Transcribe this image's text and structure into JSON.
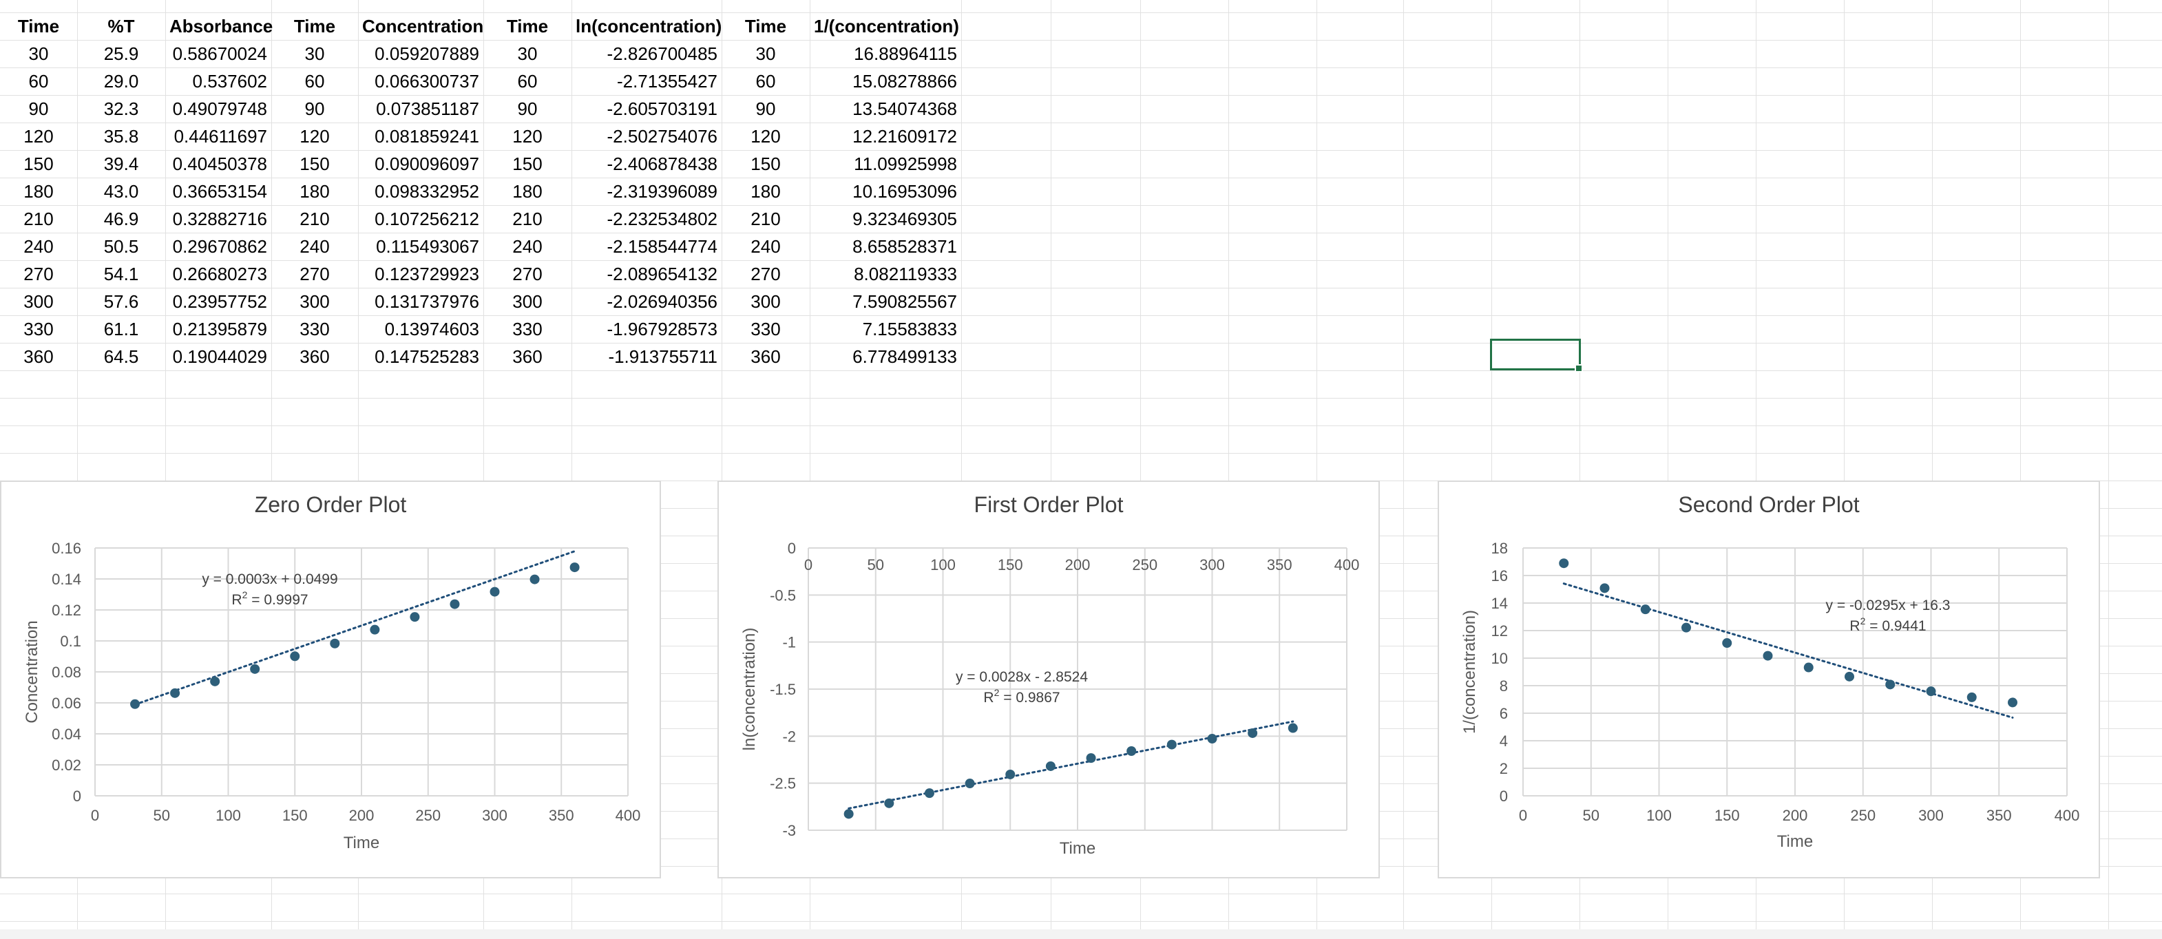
{
  "spreadsheet": {
    "headers": [
      "Time",
      "%T",
      "Absorbance",
      "Time",
      "Concentration",
      "Time",
      "ln(concentration)",
      "Time",
      "1/(concentration)"
    ],
    "rows": [
      [
        "30",
        "25.9",
        "0.58670024",
        "30",
        "0.059207889",
        "30",
        "-2.826700485",
        "30",
        "16.88964115"
      ],
      [
        "60",
        "29.0",
        "0.537602",
        "60",
        "0.066300737",
        "60",
        "-2.71355427",
        "60",
        "15.08278866"
      ],
      [
        "90",
        "32.3",
        "0.49079748",
        "90",
        "0.073851187",
        "90",
        "-2.605703191",
        "90",
        "13.54074368"
      ],
      [
        "120",
        "35.8",
        "0.44611697",
        "120",
        "0.081859241",
        "120",
        "-2.502754076",
        "120",
        "12.21609172"
      ],
      [
        "150",
        "39.4",
        "0.40450378",
        "150",
        "0.090096097",
        "150",
        "-2.406878438",
        "150",
        "11.09925998"
      ],
      [
        "180",
        "43.0",
        "0.36653154",
        "180",
        "0.098332952",
        "180",
        "-2.319396089",
        "180",
        "10.16953096"
      ],
      [
        "210",
        "46.9",
        "0.32882716",
        "210",
        "0.107256212",
        "210",
        "-2.232534802",
        "210",
        "9.323469305"
      ],
      [
        "240",
        "50.5",
        "0.29670862",
        "240",
        "0.115493067",
        "240",
        "-2.158544774",
        "240",
        "8.658528371"
      ],
      [
        "270",
        "54.1",
        "0.26680273",
        "270",
        "0.123729923",
        "270",
        "-2.089654132",
        "270",
        "8.082119333"
      ],
      [
        "300",
        "57.6",
        "0.23957752",
        "300",
        "0.131737976",
        "300",
        "-2.026940356",
        "300",
        "7.590825567"
      ],
      [
        "330",
        "61.1",
        "0.21395879",
        "330",
        "0.13974603",
        "330",
        "-1.967928573",
        "330",
        "7.15583833"
      ],
      [
        "360",
        "64.5",
        "0.19044029",
        "360",
        "0.147525283",
        "360",
        "-1.913755711",
        "360",
        "6.778499133"
      ]
    ]
  },
  "colors": {
    "marker": "#2e5f7a",
    "gridline": "#d9d9d9",
    "sheet_grid": "#e1e1e1",
    "selection": "#217346",
    "axis_text": "#595959",
    "title_text": "#404040"
  },
  "chart_data": [
    {
      "type": "scatter",
      "title": "Zero Order Plot",
      "xlabel": "Time",
      "ylabel": "Concentration",
      "xlim": [
        0,
        400
      ],
      "ylim": [
        0,
        0.16
      ],
      "x_ticks": [
        "0",
        "50",
        "100",
        "150",
        "200",
        "250",
        "300",
        "350",
        "400"
      ],
      "y_ticks": [
        "0",
        "0.02",
        "0.04",
        "0.06",
        "0.08",
        "0.1",
        "0.12",
        "0.14",
        "0.16"
      ],
      "x_tick_values": [
        0,
        50,
        100,
        150,
        200,
        250,
        300,
        350,
        400
      ],
      "y_tick_values": [
        0,
        0.02,
        0.04,
        0.06,
        0.08,
        0.1,
        0.12,
        0.14,
        0.16
      ],
      "x_axis_position": "bottom",
      "grid": true,
      "series": [
        {
          "x": [
            30,
            60,
            90,
            120,
            150,
            180,
            210,
            240,
            270,
            300,
            330,
            360
          ],
          "y": [
            0.059207889,
            0.066300737,
            0.073851187,
            0.081859241,
            0.090096097,
            0.098332952,
            0.107256212,
            0.115493067,
            0.123729923,
            0.131737976,
            0.13974603,
            0.147525283
          ]
        }
      ],
      "trendline": {
        "type": "linear",
        "slope": 0.0003,
        "intercept": 0.0499,
        "x_from": 30,
        "x_to": 360
      },
      "equation": "y = 0.0003x + 0.0499",
      "r_squared_label": "R",
      "r_squared_exp": "2",
      "r_squared_value": " = 0.9997",
      "equation_position": "top-left"
    },
    {
      "type": "scatter",
      "title": "First Order Plot",
      "xlabel": "Time",
      "ylabel": "ln(concentration)",
      "xlim": [
        0,
        400
      ],
      "ylim": [
        -3,
        0
      ],
      "x_ticks": [
        "0",
        "50",
        "100",
        "150",
        "200",
        "250",
        "300",
        "350",
        "400"
      ],
      "y_ticks": [
        "0",
        "-0.5",
        "-1",
        "-1.5",
        "-2",
        "-2.5",
        "-3"
      ],
      "x_tick_values": [
        0,
        50,
        100,
        150,
        200,
        250,
        300,
        350,
        400
      ],
      "y_tick_values": [
        0,
        -0.5,
        -1,
        -1.5,
        -2,
        -2.5,
        -3
      ],
      "x_axis_position": "top",
      "grid": true,
      "series": [
        {
          "x": [
            30,
            60,
            90,
            120,
            150,
            180,
            210,
            240,
            270,
            300,
            330,
            360
          ],
          "y": [
            -2.826700485,
            -2.71355427,
            -2.605703191,
            -2.502754076,
            -2.406878438,
            -2.319396089,
            -2.232534802,
            -2.158544774,
            -2.089654132,
            -2.026940356,
            -1.967928573,
            -1.913755711
          ]
        }
      ],
      "trendline": {
        "type": "linear",
        "slope": 0.0028,
        "intercept": -2.8524,
        "x_from": 30,
        "x_to": 360
      },
      "equation": "y = 0.0028x - 2.8524",
      "r_squared_label": "R",
      "r_squared_exp": "2",
      "r_squared_value": " = 0.9867",
      "equation_position": "center"
    },
    {
      "type": "scatter",
      "title": "Second Order Plot",
      "xlabel": "Time",
      "ylabel": "1/(concentration)",
      "xlim": [
        0,
        400
      ],
      "ylim": [
        0,
        18
      ],
      "x_ticks": [
        "0",
        "50",
        "100",
        "150",
        "200",
        "250",
        "300",
        "350",
        "400"
      ],
      "y_ticks": [
        "0",
        "2",
        "4",
        "6",
        "8",
        "10",
        "12",
        "14",
        "16",
        "18"
      ],
      "x_tick_values": [
        0,
        50,
        100,
        150,
        200,
        250,
        300,
        350,
        400
      ],
      "y_tick_values": [
        0,
        2,
        4,
        6,
        8,
        10,
        12,
        14,
        16,
        18
      ],
      "x_axis_position": "bottom",
      "grid": true,
      "series": [
        {
          "x": [
            30,
            60,
            90,
            120,
            150,
            180,
            210,
            240,
            270,
            300,
            330,
            360
          ],
          "y": [
            16.88964115,
            15.08278866,
            13.54074368,
            12.21609172,
            11.09925998,
            10.16953096,
            9.323469305,
            8.658528371,
            8.082119333,
            7.590825567,
            7.15583833,
            6.778499133
          ]
        }
      ],
      "trendline": {
        "type": "linear",
        "slope": -0.0295,
        "intercept": 16.3,
        "x_from": 30,
        "x_to": 360
      },
      "equation": "y = -0.0295x + 16.3",
      "r_squared_label": "R",
      "r_squared_exp": "2",
      "r_squared_value": " = 0.9441",
      "equation_position": "top-right"
    }
  ]
}
